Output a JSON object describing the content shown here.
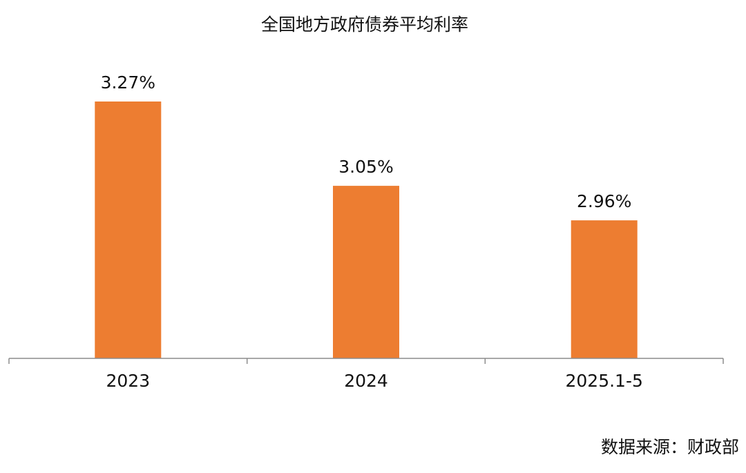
{
  "chart_data": {
    "type": "bar",
    "title": "全国地方政府债券平均利率",
    "categories": [
      "2023",
      "2024",
      "2025.1-5"
    ],
    "values": [
      3.27,
      3.05,
      2.96
    ],
    "value_labels": [
      "3.27%",
      "3.05%",
      "2.96%"
    ],
    "xlabel": "",
    "ylabel": "",
    "ylim": [
      2.6,
      3.35
    ],
    "grid": false,
    "legend": "none",
    "bar_color": "#ED7D31",
    "axis_color": "#8C8C8C"
  },
  "source": "数据来源：财政部"
}
